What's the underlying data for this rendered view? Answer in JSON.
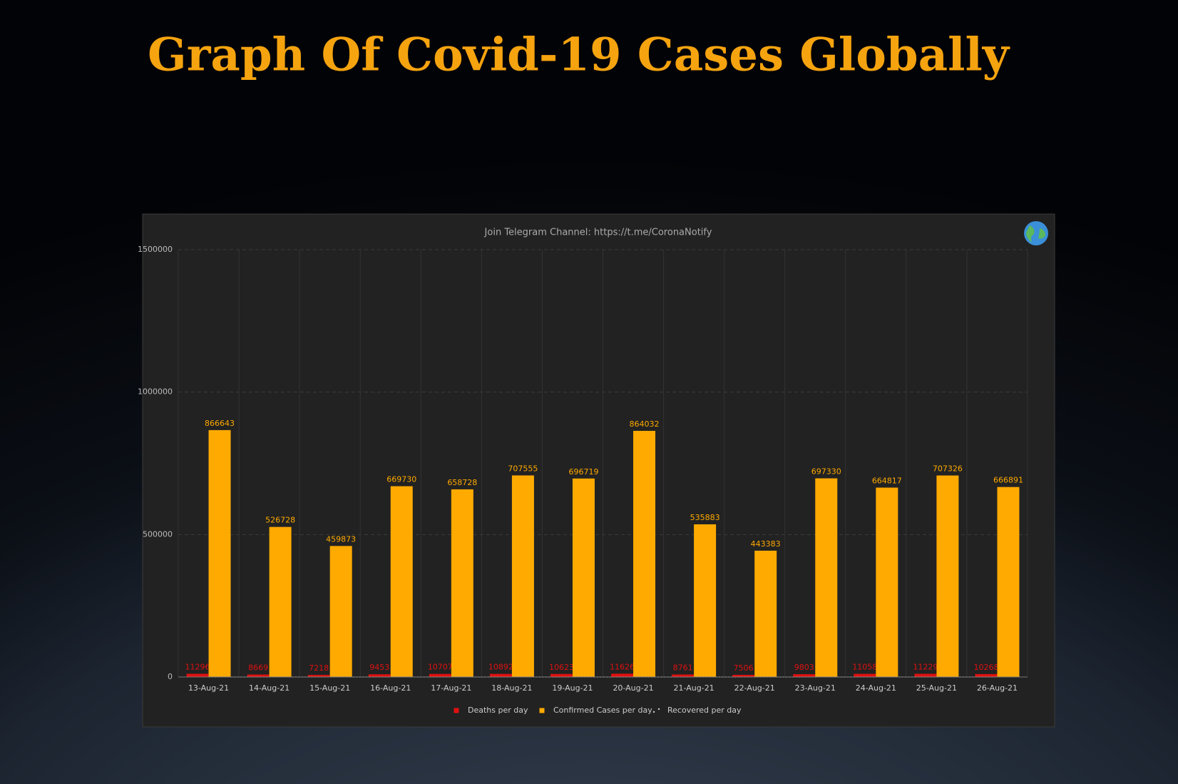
{
  "chart_data": {
    "type": "bar",
    "title": "Graph Of Covid-19 Cases Globally",
    "subtitle": "Join Telegram Channel: https://t.me/CoronaNotify",
    "categories": [
      "13-Aug-21",
      "14-Aug-21",
      "15-Aug-21",
      "16-Aug-21",
      "17-Aug-21",
      "18-Aug-21",
      "19-Aug-21",
      "20-Aug-21",
      "21-Aug-21",
      "22-Aug-21",
      "23-Aug-21",
      "24-Aug-21",
      "25-Aug-21",
      "26-Aug-21"
    ],
    "series": [
      {
        "name": "Deaths per day",
        "color": "#e01010",
        "values": [
          11296,
          8669,
          7218,
          9453,
          10707,
          10892,
          10623,
          11626,
          8761,
          7506,
          9803,
          11058,
          11229,
          10268
        ]
      },
      {
        "name": "Confirmed Cases per day",
        "color": "#ffaa00",
        "values": [
          866643,
          526728,
          459873,
          669730,
          658728,
          707555,
          696719,
          864032,
          535883,
          443383,
          697330,
          664817,
          707326,
          666891
        ]
      },
      {
        "name": "Recovered per day",
        "color": "#cccccc",
        "line": "dotted",
        "values": [
          0,
          0,
          0,
          0,
          0,
          0,
          0,
          0,
          0,
          0,
          0,
          0,
          0,
          0
        ]
      }
    ],
    "ylim": [
      0,
      1500000
    ],
    "yticks": [
      0,
      500000,
      1000000,
      1500000
    ],
    "grid": true,
    "legend": "bottom"
  }
}
